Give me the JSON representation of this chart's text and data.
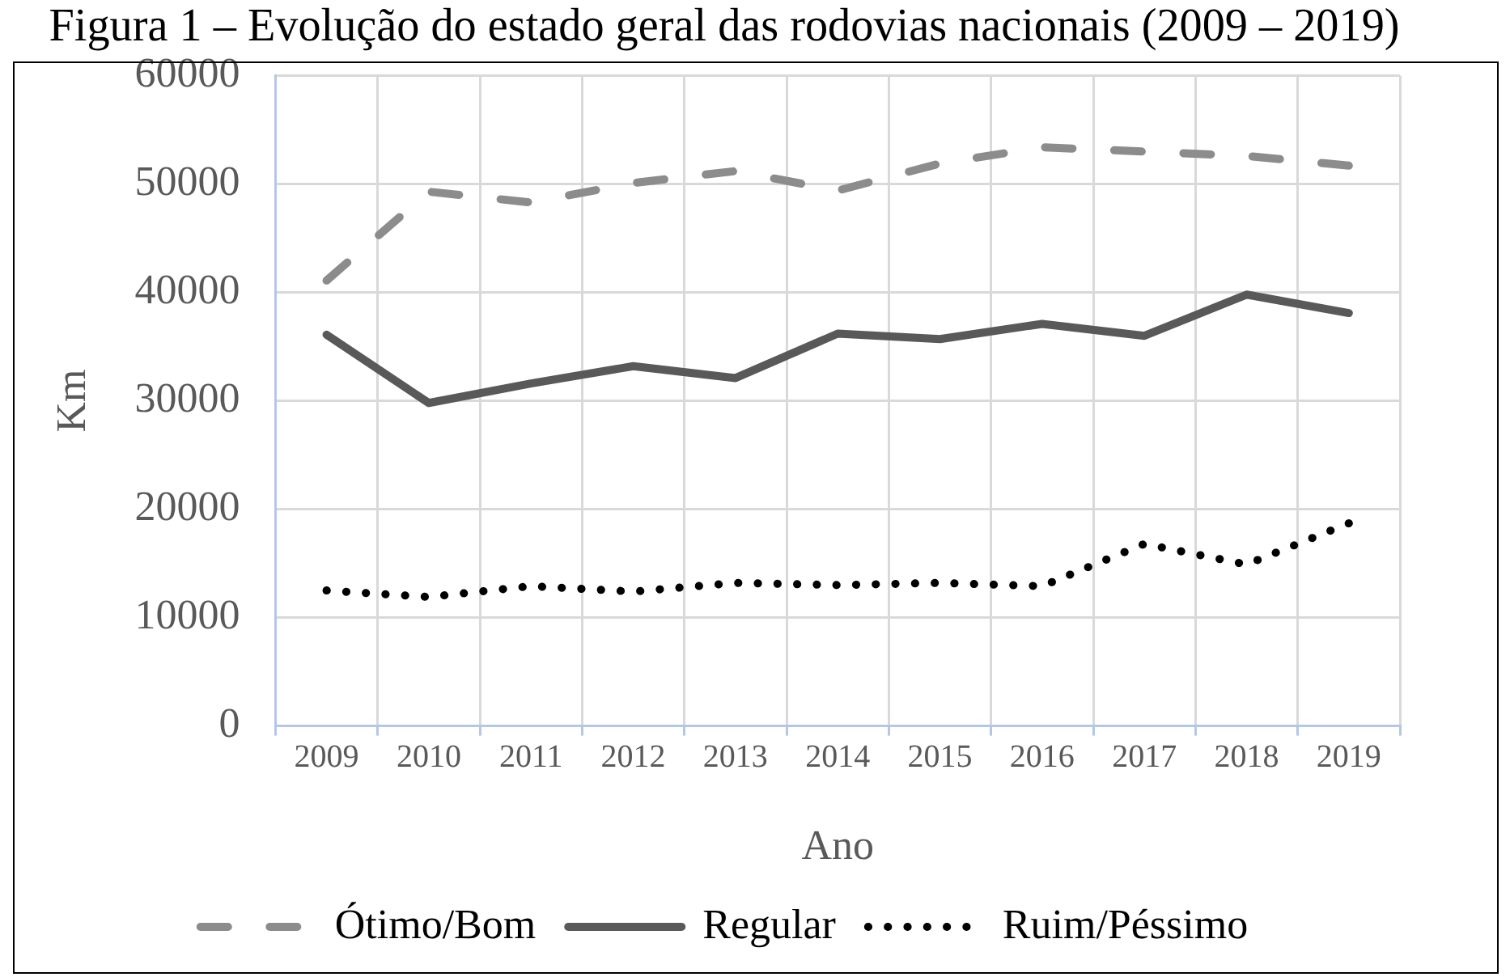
{
  "chart_data": {
    "type": "line",
    "title": "Figura 1 – Evolução do estado geral das rodovias nacionais (2009 – 2019)",
    "xlabel": "Ano",
    "ylabel": "Km",
    "categories": [
      "2009",
      "2010",
      "2011",
      "2012",
      "2013",
      "2014",
      "2015",
      "2016",
      "2017",
      "2018",
      "2019"
    ],
    "series": [
      {
        "name": "Ótimo/Bom",
        "color": "#8c8c8c",
        "line_style": "dashed",
        "values": [
          41100,
          49300,
          48300,
          50100,
          51200,
          49400,
          51900,
          53400,
          53000,
          52600,
          51700
        ]
      },
      {
        "name": "Regular",
        "color": "#595959",
        "line_style": "solid",
        "values": [
          36100,
          29800,
          31600,
          33200,
          32100,
          36200,
          35700,
          37100,
          36000,
          39800,
          38100
        ]
      },
      {
        "name": "Ruim/Péssimo",
        "color": "#000000",
        "line_style": "dotted",
        "values": [
          12500,
          11900,
          12900,
          12400,
          13200,
          13000,
          13200,
          12900,
          16800,
          14900,
          18700
        ]
      }
    ],
    "ylim": [
      0,
      60000
    ],
    "yticks": [
      0,
      10000,
      20000,
      30000,
      40000,
      50000,
      60000
    ],
    "grid": true,
    "legend": "bottom",
    "marker": "none"
  }
}
